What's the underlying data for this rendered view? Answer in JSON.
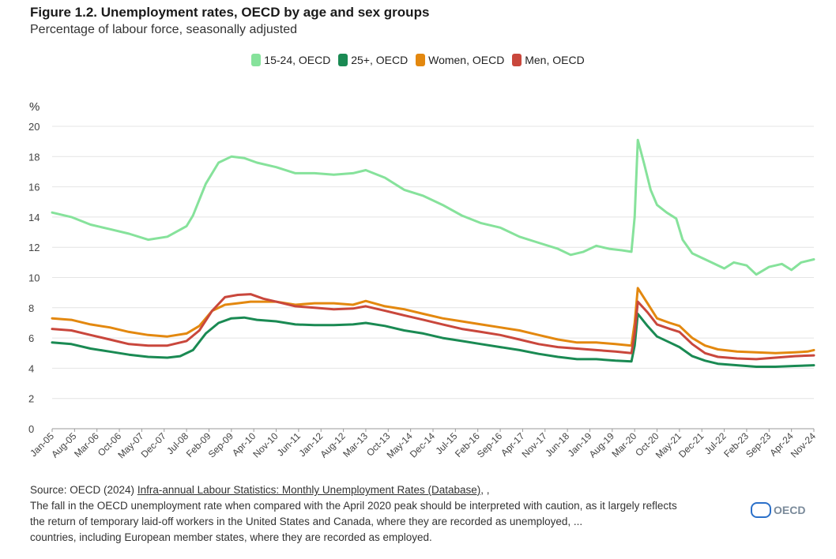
{
  "header": {
    "title": "Figure 1.2. Unemployment rates, OECD by age and sex groups",
    "subtitle": "Percentage of labour force, seasonally adjusted"
  },
  "legend": [
    {
      "label": "15-24, OECD",
      "color": "#86e29b"
    },
    {
      "label": "25+, OECD",
      "color": "#1a8a53"
    },
    {
      "label": "Women, OECD",
      "color": "#e3880f"
    },
    {
      "label": "Men, OECD",
      "color": "#c9473c"
    }
  ],
  "source": {
    "prefix": "Source: OECD (2024) ",
    "link": "Infra-annual Labour Statistics: Monthly Unemployment Rates (Database)",
    "suffix": ", ,",
    "note_line1": "The fall in the OECD unemployment rate when compared with the April 2020 peak should be interpreted with caution, as it largely reflects",
    "note_line2": "the return of temporary laid-off workers in the United States and Canada, where they are recorded as unemployed, ...",
    "note_line3": "countries, including European member states, where they are recorded as employed."
  },
  "watermark": "OECD",
  "chart_data": {
    "type": "line",
    "title": "Figure 1.2. Unemployment rates, OECD by age and sex groups",
    "ylabel": "%",
    "ylim": [
      0,
      20
    ],
    "yticks": [
      0,
      2,
      4,
      6,
      8,
      10,
      12,
      14,
      16,
      18,
      20
    ],
    "xlim": [
      "Jan-05",
      "Nov-24"
    ],
    "x_tick_labels": [
      "Jan-05",
      "Aug-05",
      "Mar-06",
      "Oct-06",
      "May-07",
      "Dec-07",
      "Jul-08",
      "Feb-09",
      "Sep-09",
      "Apr-10",
      "Nov-10",
      "Jun-11",
      "Jan-12",
      "Aug-12",
      "Mar-13",
      "Oct-13",
      "May-14",
      "Dec-14",
      "Jul-15",
      "Feb-16",
      "Sep-16",
      "Apr-17",
      "Nov-17",
      "Jun-18",
      "Jan-19",
      "Aug-19",
      "Mar-20",
      "Oct-20",
      "May-21",
      "Dec-21",
      "Jul-22",
      "Feb-23",
      "Sep-23",
      "Apr-24",
      "Nov-24"
    ],
    "x_tick_months": [
      0,
      7,
      14,
      21,
      28,
      35,
      42,
      49,
      56,
      63,
      70,
      77,
      84,
      91,
      98,
      105,
      112,
      119,
      126,
      133,
      140,
      147,
      154,
      161,
      168,
      175,
      182,
      189,
      196,
      203,
      210,
      217,
      224,
      231,
      238
    ],
    "grid": true,
    "legend_position": "top-center",
    "series": [
      {
        "name": "15-24, OECD",
        "color": "#86e29b",
        "points": [
          [
            0,
            14.3
          ],
          [
            6,
            14.0
          ],
          [
            12,
            13.5
          ],
          [
            18,
            13.2
          ],
          [
            24,
            12.9
          ],
          [
            30,
            12.5
          ],
          [
            36,
            12.7
          ],
          [
            42,
            13.4
          ],
          [
            44,
            14.1
          ],
          [
            48,
            16.2
          ],
          [
            52,
            17.6
          ],
          [
            56,
            18.0
          ],
          [
            60,
            17.9
          ],
          [
            64,
            17.6
          ],
          [
            70,
            17.3
          ],
          [
            76,
            16.9
          ],
          [
            82,
            16.9
          ],
          [
            88,
            16.8
          ],
          [
            94,
            16.9
          ],
          [
            98,
            17.1
          ],
          [
            104,
            16.6
          ],
          [
            110,
            15.8
          ],
          [
            116,
            15.4
          ],
          [
            122,
            14.8
          ],
          [
            128,
            14.1
          ],
          [
            134,
            13.6
          ],
          [
            140,
            13.3
          ],
          [
            146,
            12.7
          ],
          [
            152,
            12.3
          ],
          [
            158,
            11.9
          ],
          [
            162,
            11.5
          ],
          [
            166,
            11.7
          ],
          [
            170,
            12.1
          ],
          [
            174,
            11.9
          ],
          [
            178,
            11.8
          ],
          [
            181,
            11.7
          ],
          [
            182,
            14.0
          ],
          [
            183,
            19.1
          ],
          [
            185,
            17.5
          ],
          [
            187,
            15.8
          ],
          [
            189,
            14.8
          ],
          [
            192,
            14.3
          ],
          [
            195,
            13.9
          ],
          [
            197,
            12.5
          ],
          [
            200,
            11.6
          ],
          [
            205,
            11.1
          ],
          [
            210,
            10.6
          ],
          [
            213,
            11.0
          ],
          [
            217,
            10.8
          ],
          [
            220,
            10.2
          ],
          [
            224,
            10.7
          ],
          [
            228,
            10.9
          ],
          [
            231,
            10.5
          ],
          [
            234,
            11.0
          ],
          [
            238,
            11.2
          ]
        ]
      },
      {
        "name": "25+, OECD",
        "color": "#1a8a53",
        "points": [
          [
            0,
            5.7
          ],
          [
            6,
            5.6
          ],
          [
            12,
            5.3
          ],
          [
            18,
            5.1
          ],
          [
            24,
            4.9
          ],
          [
            30,
            4.75
          ],
          [
            36,
            4.7
          ],
          [
            40,
            4.8
          ],
          [
            44,
            5.2
          ],
          [
            48,
            6.3
          ],
          [
            52,
            7.0
          ],
          [
            56,
            7.3
          ],
          [
            60,
            7.35
          ],
          [
            64,
            7.2
          ],
          [
            70,
            7.1
          ],
          [
            76,
            6.9
          ],
          [
            82,
            6.85
          ],
          [
            88,
            6.85
          ],
          [
            94,
            6.9
          ],
          [
            98,
            7.0
          ],
          [
            104,
            6.8
          ],
          [
            110,
            6.5
          ],
          [
            116,
            6.3
          ],
          [
            122,
            6.0
          ],
          [
            128,
            5.8
          ],
          [
            134,
            5.6
          ],
          [
            140,
            5.4
          ],
          [
            146,
            5.2
          ],
          [
            152,
            4.95
          ],
          [
            158,
            4.75
          ],
          [
            164,
            4.6
          ],
          [
            170,
            4.6
          ],
          [
            176,
            4.5
          ],
          [
            181,
            4.45
          ],
          [
            182,
            5.5
          ],
          [
            183,
            7.6
          ],
          [
            186,
            6.8
          ],
          [
            189,
            6.1
          ],
          [
            193,
            5.7
          ],
          [
            196,
            5.4
          ],
          [
            200,
            4.8
          ],
          [
            204,
            4.5
          ],
          [
            208,
            4.3
          ],
          [
            214,
            4.2
          ],
          [
            220,
            4.1
          ],
          [
            226,
            4.1
          ],
          [
            232,
            4.15
          ],
          [
            238,
            4.2
          ]
        ]
      },
      {
        "name": "Women, OECD",
        "color": "#e3880f",
        "points": [
          [
            0,
            7.3
          ],
          [
            6,
            7.2
          ],
          [
            12,
            6.9
          ],
          [
            18,
            6.7
          ],
          [
            24,
            6.4
          ],
          [
            30,
            6.2
          ],
          [
            36,
            6.1
          ],
          [
            42,
            6.3
          ],
          [
            46,
            6.8
          ],
          [
            50,
            7.8
          ],
          [
            54,
            8.2
          ],
          [
            58,
            8.3
          ],
          [
            62,
            8.4
          ],
          [
            66,
            8.4
          ],
          [
            70,
            8.4
          ],
          [
            76,
            8.2
          ],
          [
            82,
            8.3
          ],
          [
            88,
            8.3
          ],
          [
            94,
            8.2
          ],
          [
            98,
            8.45
          ],
          [
            104,
            8.1
          ],
          [
            110,
            7.9
          ],
          [
            116,
            7.6
          ],
          [
            122,
            7.3
          ],
          [
            128,
            7.1
          ],
          [
            134,
            6.9
          ],
          [
            140,
            6.7
          ],
          [
            146,
            6.5
          ],
          [
            152,
            6.2
          ],
          [
            158,
            5.9
          ],
          [
            164,
            5.7
          ],
          [
            170,
            5.7
          ],
          [
            176,
            5.6
          ],
          [
            181,
            5.5
          ],
          [
            182,
            7.0
          ],
          [
            183,
            9.3
          ],
          [
            186,
            8.3
          ],
          [
            189,
            7.3
          ],
          [
            193,
            7.0
          ],
          [
            196,
            6.8
          ],
          [
            200,
            6.0
          ],
          [
            204,
            5.5
          ],
          [
            208,
            5.25
          ],
          [
            214,
            5.1
          ],
          [
            220,
            5.05
          ],
          [
            226,
            5.0
          ],
          [
            232,
            5.05
          ],
          [
            236,
            5.1
          ],
          [
            238,
            5.2
          ]
        ]
      },
      {
        "name": "Men, OECD",
        "color": "#c9473c",
        "points": [
          [
            0,
            6.6
          ],
          [
            6,
            6.5
          ],
          [
            12,
            6.2
          ],
          [
            18,
            5.9
          ],
          [
            24,
            5.6
          ],
          [
            30,
            5.5
          ],
          [
            36,
            5.5
          ],
          [
            42,
            5.8
          ],
          [
            46,
            6.5
          ],
          [
            50,
            7.8
          ],
          [
            54,
            8.7
          ],
          [
            58,
            8.85
          ],
          [
            62,
            8.9
          ],
          [
            66,
            8.6
          ],
          [
            70,
            8.4
          ],
          [
            76,
            8.1
          ],
          [
            82,
            8.0
          ],
          [
            88,
            7.9
          ],
          [
            94,
            7.95
          ],
          [
            98,
            8.1
          ],
          [
            104,
            7.8
          ],
          [
            110,
            7.5
          ],
          [
            116,
            7.2
          ],
          [
            122,
            6.9
          ],
          [
            128,
            6.6
          ],
          [
            134,
            6.4
          ],
          [
            140,
            6.2
          ],
          [
            146,
            5.9
          ],
          [
            152,
            5.6
          ],
          [
            158,
            5.4
          ],
          [
            164,
            5.3
          ],
          [
            170,
            5.2
          ],
          [
            176,
            5.1
          ],
          [
            181,
            5.0
          ],
          [
            182,
            6.3
          ],
          [
            183,
            8.4
          ],
          [
            186,
            7.7
          ],
          [
            189,
            6.9
          ],
          [
            193,
            6.6
          ],
          [
            196,
            6.4
          ],
          [
            200,
            5.6
          ],
          [
            204,
            5.0
          ],
          [
            208,
            4.75
          ],
          [
            214,
            4.65
          ],
          [
            220,
            4.6
          ],
          [
            226,
            4.7
          ],
          [
            232,
            4.8
          ],
          [
            238,
            4.85
          ]
        ]
      }
    ]
  }
}
